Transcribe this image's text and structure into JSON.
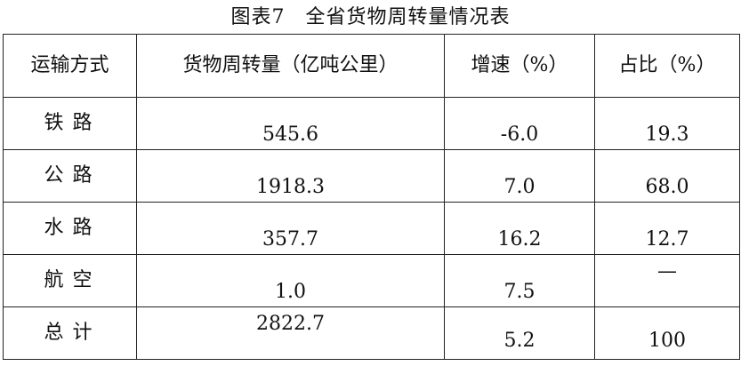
{
  "title": "图表7　全省货物周转量情况表",
  "table": {
    "headers": [
      "运输方式",
      "货物周转量（亿吨公里）",
      "增速（%）",
      "占比（%）"
    ],
    "rows": [
      {
        "mode": "铁路",
        "volume": "545.6",
        "growth": "-6.0",
        "share": "19.3"
      },
      {
        "mode": "公路",
        "volume": "1918.3",
        "growth": "7.0",
        "share": "68.0"
      },
      {
        "mode": "水路",
        "volume": "357.7",
        "growth": "16.2",
        "share": "12.7"
      },
      {
        "mode": "航空",
        "volume": "1.0",
        "growth": "7.5",
        "share": "—"
      },
      {
        "mode": "总计",
        "volume": "2822.7",
        "growth": "5.2",
        "share": "100"
      }
    ]
  }
}
